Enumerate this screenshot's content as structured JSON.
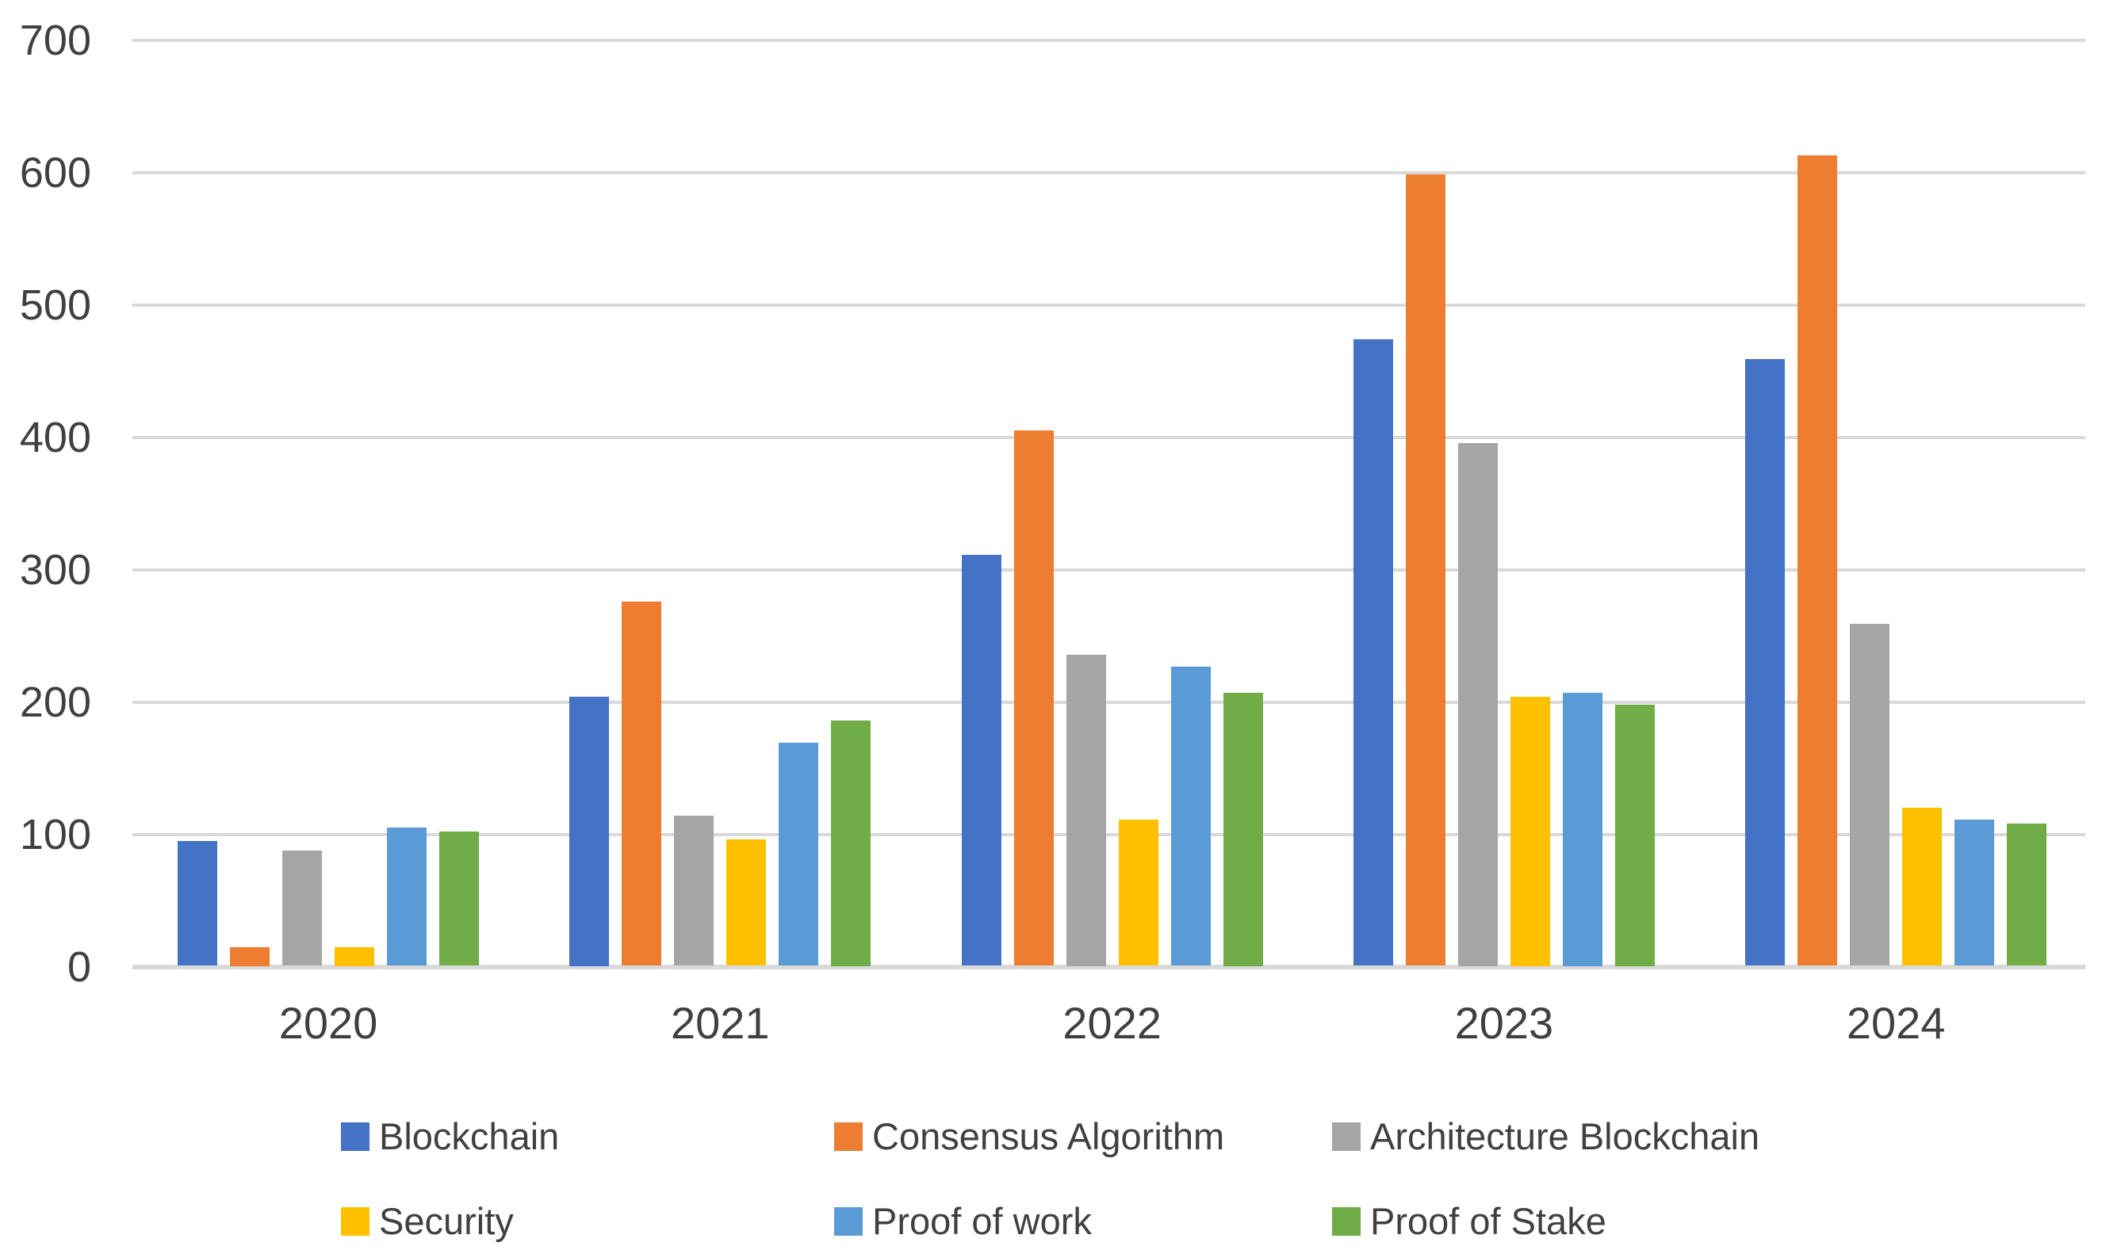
{
  "chart_data": {
    "type": "bar",
    "title": "",
    "xlabel": "",
    "ylabel": "",
    "categories": [
      "2020",
      "2021",
      "2022",
      "2023",
      "2024"
    ],
    "series": [
      {
        "name": "Blockchain",
        "color": "#4472C4",
        "values": [
          95,
          204,
          311,
          474,
          459
        ]
      },
      {
        "name": "Consensus Algorithm",
        "color": "#ED7D31",
        "values": [
          15,
          276,
          405,
          599,
          613
        ]
      },
      {
        "name": "Architecture Blockchain",
        "color": "#A5A5A5",
        "values": [
          88,
          114,
          236,
          396,
          259
        ]
      },
      {
        "name": "Security",
        "color": "#FFC000",
        "values": [
          15,
          96,
          111,
          204,
          120
        ]
      },
      {
        "name": "Proof of work",
        "color": "#5B9BD5",
        "values": [
          105,
          169,
          227,
          207,
          111
        ]
      },
      {
        "name": "Proof of Stake",
        "color": "#70AD47",
        "values": [
          102,
          186,
          207,
          198,
          108
        ]
      }
    ],
    "ylim": [
      0,
      700
    ],
    "ytick_step": 100,
    "yticks": [
      "0",
      "100",
      "200",
      "300",
      "400",
      "500",
      "600",
      "700"
    ],
    "grid": true,
    "legend_position": "bottom",
    "legend_layout_rows": [
      [
        "Blockchain",
        "Consensus Algorithm",
        "Architecture Blockchain"
      ],
      [
        "Security",
        "Proof of work",
        "Proof of Stake"
      ]
    ],
    "axis_text_color": "#404040",
    "gridline_color": "#D9D9D9",
    "plot_background": "#FFFFFF"
  }
}
